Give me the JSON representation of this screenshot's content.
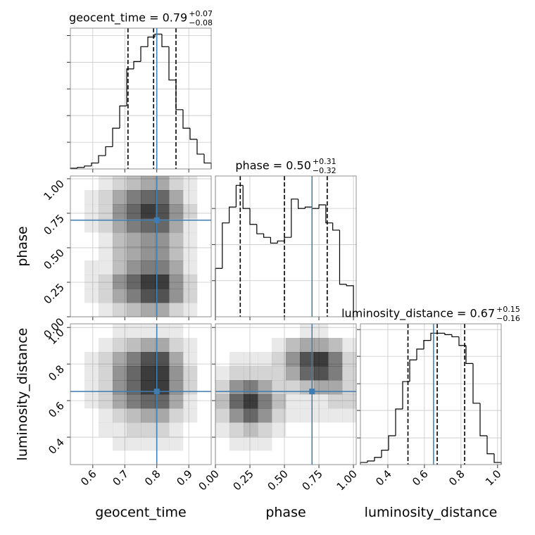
{
  "chart_data": {
    "type": "corner",
    "truth_color": "#3e7cb1",
    "hist_color": "#000000",
    "density_color": "#000000",
    "grid": true,
    "density_lim": [
      0,
      10
    ],
    "parameters": [
      {
        "label": "geocent_time",
        "title": "geocent_time = 0.79",
        "title_upper": "+0.07",
        "title_lower": "−0.08",
        "lim": [
          0.53,
          0.97
        ],
        "ticks": [
          0.6,
          0.7,
          0.8,
          0.9
        ],
        "truth": 0.8,
        "quantiles": [
          0.71,
          0.79,
          0.86
        ],
        "bins": [
          0.53,
          0.552,
          0.574,
          0.596,
          0.618,
          0.64,
          0.662,
          0.684,
          0.706,
          0.728,
          0.75,
          0.772,
          0.794,
          0.816,
          0.838,
          0.86,
          0.882,
          0.904,
          0.926,
          0.948,
          0.97
        ],
        "counts": [
          1,
          2,
          4,
          8,
          18,
          30,
          55,
          85,
          135,
          145,
          165,
          178,
          182,
          165,
          120,
          80,
          55,
          40,
          20,
          8
        ],
        "count_lim": [
          0,
          190
        ],
        "count_ticks": [
          36,
          72,
          108,
          144,
          180
        ]
      },
      {
        "label": "phase",
        "title": "phase = 0.50",
        "title_upper": "+0.31",
        "title_lower": "−0.32",
        "lim": [
          0,
          1.02
        ],
        "ticks": [
          {
            "value": 0,
            "label": "0.00"
          },
          0.25,
          {
            "value": 0.5,
            "label": "0.50"
          },
          0.75,
          {
            "value": 1,
            "label": "1.00"
          }
        ],
        "truth": 0.7,
        "quantiles": [
          0.18,
          0.5,
          0.81
        ],
        "bins": [
          0,
          0.05,
          0.1,
          0.15,
          0.2,
          0.25,
          0.3,
          0.35,
          0.4,
          0.45,
          0.5,
          0.55,
          0.6,
          0.65,
          0.7,
          0.75,
          0.8,
          0.85,
          0.9,
          0.95,
          1.0
        ],
        "counts": [
          67,
          130,
          152,
          182,
          150,
          128,
          115,
          110,
          102,
          105,
          110,
          163,
          150,
          152,
          150,
          155,
          130,
          120,
          45,
          43
        ],
        "count_lim": [
          0,
          195
        ],
        "count_ticks": [
          50,
          100,
          150
        ]
      },
      {
        "label": "luminosity_distance",
        "title": "luminosity_distance = 0.67",
        "title_upper": "+0.15",
        "title_lower": "−0.16",
        "lim": [
          0.25,
          1.02
        ],
        "ticks": [
          0.4,
          0.6,
          0.8,
          {
            "value": 1,
            "label": "1.0"
          }
        ],
        "truth": 0.65,
        "quantiles": [
          0.51,
          0.67,
          0.82
        ],
        "bins": [
          0.25,
          0.2885,
          0.327,
          0.3655,
          0.404,
          0.4425,
          0.481,
          0.5195,
          0.558,
          0.5965,
          0.635,
          0.6735,
          0.712,
          0.7505,
          0.789,
          0.8275,
          0.866,
          0.9045,
          0.943,
          0.9815,
          1.02
        ],
        "counts": [
          3,
          5,
          10,
          20,
          40,
          77,
          115,
          145,
          160,
          172,
          182,
          182,
          180,
          177,
          165,
          140,
          85,
          40,
          15,
          3
        ],
        "count_lim": [
          0,
          195
        ],
        "count_ticks": [
          37,
          75,
          112,
          150,
          187
        ]
      }
    ],
    "density": [
      [
        [
          0,
          0,
          1,
          2,
          3,
          4,
          4,
          2,
          1,
          0
        ],
        [
          0,
          1,
          2,
          4,
          6,
          8,
          8,
          5,
          2,
          0
        ],
        [
          0,
          1,
          2,
          5,
          7,
          9,
          9,
          5,
          2,
          0
        ],
        [
          0,
          1,
          1,
          3,
          5,
          6,
          6,
          4,
          1,
          0
        ],
        [
          0,
          0,
          1,
          3,
          4,
          5,
          5,
          3,
          1,
          0
        ],
        [
          0,
          0,
          1,
          3,
          4,
          5,
          5,
          3,
          1,
          0
        ],
        [
          0,
          1,
          2,
          4,
          6,
          7,
          7,
          4,
          1,
          0
        ],
        [
          0,
          1,
          2,
          5,
          7,
          9,
          8,
          5,
          2,
          0
        ],
        [
          0,
          1,
          2,
          4,
          6,
          7,
          7,
          4,
          1,
          0
        ],
        [
          0,
          0,
          1,
          2,
          3,
          4,
          4,
          2,
          1,
          0
        ]
      ],
      [
        [
          0,
          0,
          0,
          0,
          0,
          0,
          0,
          0,
          0,
          0
        ],
        [
          0,
          0,
          0,
          1,
          1,
          1,
          1,
          1,
          0,
          0
        ],
        [
          0,
          0,
          1,
          1,
          2,
          2,
          2,
          1,
          0,
          0
        ],
        [
          0,
          0,
          1,
          2,
          3,
          4,
          4,
          2,
          1,
          0
        ],
        [
          0,
          1,
          2,
          4,
          6,
          7,
          7,
          4,
          1,
          0
        ],
        [
          0,
          1,
          2,
          5,
          7,
          9,
          9,
          5,
          2,
          0
        ],
        [
          0,
          1,
          2,
          5,
          7,
          9,
          9,
          5,
          2,
          0
        ],
        [
          0,
          1,
          2,
          4,
          6,
          8,
          8,
          4,
          1,
          0
        ],
        [
          0,
          0,
          1,
          2,
          3,
          4,
          4,
          2,
          1,
          0
        ],
        [
          0,
          0,
          0,
          1,
          1,
          1,
          1,
          1,
          0,
          0
        ]
      ],
      [
        [
          0,
          0,
          0,
          0,
          0,
          0,
          0,
          0,
          0,
          0
        ],
        [
          0,
          1,
          1,
          1,
          0,
          0,
          0,
          0,
          0,
          0
        ],
        [
          1,
          2,
          3,
          2,
          1,
          0,
          0,
          0,
          0,
          0
        ],
        [
          2,
          5,
          7,
          5,
          2,
          1,
          1,
          1,
          1,
          1
        ],
        [
          3,
          7,
          9,
          6,
          3,
          1,
          1,
          1,
          2,
          2
        ],
        [
          2,
          5,
          6,
          4,
          2,
          2,
          3,
          4,
          4,
          2
        ],
        [
          1,
          2,
          2,
          2,
          2,
          4,
          7,
          8,
          6,
          2
        ],
        [
          0,
          1,
          1,
          1,
          2,
          5,
          8,
          9,
          6,
          2
        ],
        [
          0,
          0,
          0,
          0,
          1,
          3,
          4,
          4,
          3,
          1
        ],
        [
          0,
          0,
          0,
          0,
          0,
          0,
          1,
          1,
          0,
          0
        ]
      ]
    ]
  }
}
